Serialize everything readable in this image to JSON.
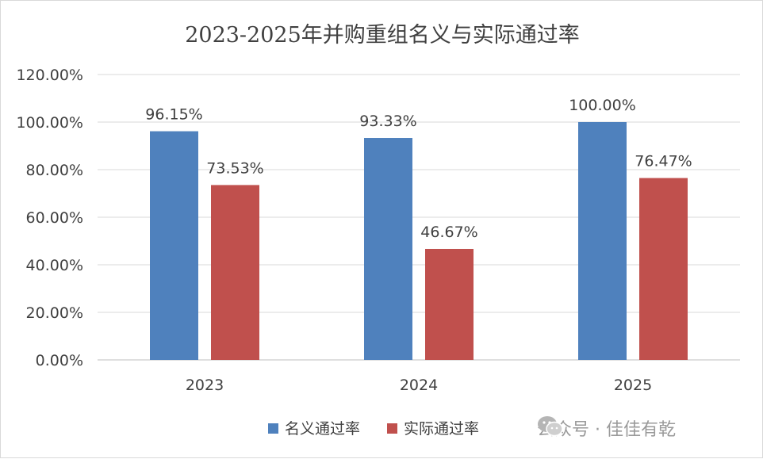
{
  "chart_data": {
    "type": "bar",
    "title": "2023-2025年并购重组名义与实际通过率",
    "categories": [
      "2023",
      "2024",
      "2025"
    ],
    "series": [
      {
        "name": "名义通过率",
        "values": [
          96.15,
          93.33,
          100.0
        ],
        "color": "#4f81bd"
      },
      {
        "name": "实际通过率",
        "values": [
          73.53,
          46.67,
          76.47
        ],
        "color": "#c0504d"
      }
    ],
    "ylim": [
      0,
      120
    ],
    "yticks": [
      0,
      20,
      40,
      60,
      80,
      100,
      120
    ],
    "ytick_format": "percent-2dp",
    "grid": true,
    "legend_position": "bottom-center"
  },
  "watermark": {
    "icon": "wechat-icon",
    "text": "公众号 · 佳佳有乾"
  }
}
